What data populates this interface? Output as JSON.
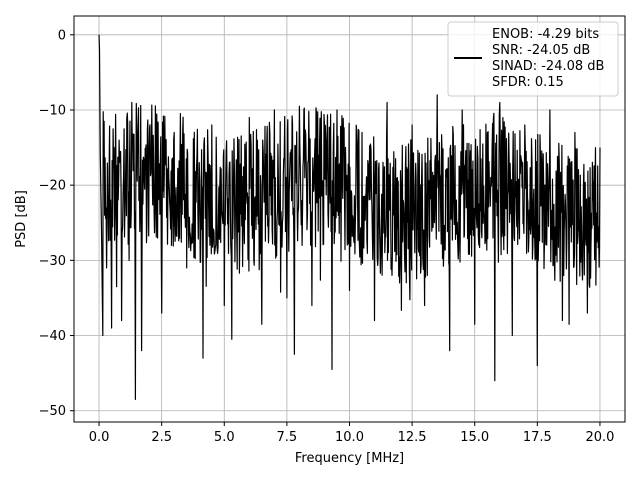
{
  "chart_data": {
    "type": "line",
    "title": "",
    "xlabel": "Frequency [MHz]",
    "ylabel": "PSD [dB]",
    "xlim": [
      -1.0,
      21.0
    ],
    "ylim": [
      -51.5,
      2.5
    ],
    "xticks": [
      0.0,
      2.5,
      5.0,
      7.5,
      10.0,
      12.5,
      15.0,
      17.5,
      20.0
    ],
    "xtick_labels": [
      "0.0",
      "2.5",
      "5.0",
      "7.5",
      "10.0",
      "12.5",
      "15.0",
      "17.5",
      "20.0"
    ],
    "yticks": [
      0,
      -10,
      -20,
      -30,
      -40,
      -50
    ],
    "ytick_labels": [
      "0",
      "−10",
      "−20",
      "−30",
      "−40",
      "−50"
    ],
    "grid": true,
    "legend_position": "top-right",
    "line_color": "#000000",
    "series": [
      {
        "name": "ENOB: -4.29 bits",
        "description": "Noise-like PSD over 0–20 MHz: a spike to 0 dB at DC, then dense fluctuation mostly between about -10 and -30 dB with occasional deeper notches",
        "x": [
          0.0,
          0.02,
          0.05,
          0.1,
          0.15,
          0.2,
          0.3,
          0.4,
          0.5,
          0.6,
          0.7,
          0.8,
          0.9,
          1.0,
          1.2,
          1.45,
          1.7,
          2.0,
          2.5,
          3.0,
          3.5,
          4.0,
          4.15,
          4.5,
          5.0,
          5.3,
          6.0,
          6.5,
          7.0,
          7.5,
          7.8,
          8.0,
          8.5,
          9.0,
          9.3,
          9.5,
          10.0,
          10.5,
          11.0,
          11.5,
          12.0,
          12.5,
          13.0,
          13.5,
          14.0,
          14.5,
          15.0,
          15.5,
          15.8,
          16.0,
          16.5,
          17.0,
          17.5,
          18.0,
          18.5,
          19.0,
          19.5,
          20.0
        ],
        "y": [
          0.0,
          -2.0,
          -16.0,
          -26.0,
          -40.0,
          -11.5,
          -31.0,
          -18.0,
          -39.0,
          -15.0,
          -33.5,
          -14.0,
          -38.0,
          -12.5,
          -30.0,
          -48.5,
          -42.0,
          -16.0,
          -37.0,
          -13.0,
          -31.0,
          -17.0,
          -43.0,
          -12.0,
          -36.0,
          -40.5,
          -11.0,
          -38.5,
          -10.0,
          -35.0,
          -42.5,
          -9.5,
          -36.0,
          -12.0,
          -44.5,
          -10.0,
          -34.0,
          -13.0,
          -38.0,
          -9.0,
          -33.0,
          -12.0,
          -36.0,
          -8.0,
          -42.0,
          -10.0,
          -38.5,
          -13.0,
          -46.0,
          -9.0,
          -40.0,
          -12.0,
          -44.0,
          -10.0,
          -38.0,
          -13.0,
          -37.0,
          -15.0
        ]
      }
    ],
    "legend_entries": [
      "ENOB: -4.29 bits",
      "SNR: -24.05 dB",
      "SINAD: -24.08 dB",
      "SFDR: 0.15"
    ]
  }
}
